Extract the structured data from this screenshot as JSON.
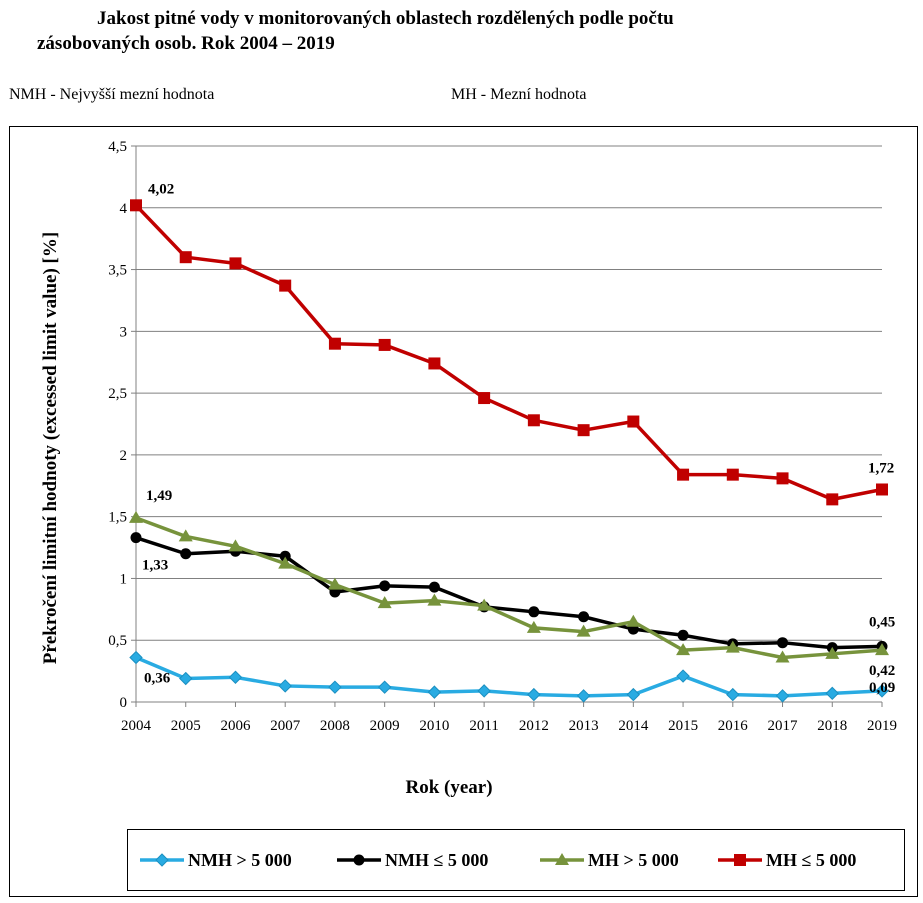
{
  "header": {
    "title_line1": "Jakost pitné vody v monitorovaných oblastech rozdělených podle počtu",
    "title_line2": "zásobovaných osob. Rok 2004 – 2019",
    "abbr_nmh": "NMH - Nejvyšší mezní hodnota",
    "abbr_mh": "MH - Mezní hodnota"
  },
  "chart_data": {
    "type": "line",
    "title": "Jakost pitné vody v monitorovaných oblastech rozdělených podle počtu zásobovaných osob. Rok 2004 – 2019",
    "xlabel": "Rok (year)",
    "ylabel": "Překročení limitní hodnoty (excessed limit value) [%]",
    "x": [
      "2004",
      "2005",
      "2006",
      "2007",
      "2008",
      "2009",
      "2010",
      "2011",
      "2012",
      "2013",
      "2014",
      "2015",
      "2016",
      "2017",
      "2018",
      "2019"
    ],
    "ylim": [
      0,
      4.5
    ],
    "yticks": [
      "0",
      "0,5",
      "1",
      "1,5",
      "2",
      "2,5",
      "3",
      "3,5",
      "4",
      "4,5"
    ],
    "ytick_values": [
      0,
      0.5,
      1,
      1.5,
      2,
      2.5,
      3,
      3.5,
      4,
      4.5
    ],
    "grid": true,
    "legend_position": "bottom",
    "series": [
      {
        "name": "NMH > 5 000",
        "color": "#29abe2",
        "marker": "diamond",
        "values": [
          0.36,
          0.19,
          0.2,
          0.13,
          0.12,
          0.12,
          0.08,
          0.09,
          0.06,
          0.05,
          0.06,
          0.21,
          0.06,
          0.05,
          0.07,
          0.09
        ]
      },
      {
        "name": "NMH ≤ 5 000",
        "color": "#000000",
        "marker": "circle",
        "values": [
          1.33,
          1.2,
          1.22,
          1.18,
          0.89,
          0.94,
          0.93,
          0.77,
          0.73,
          0.69,
          0.59,
          0.54,
          0.47,
          0.48,
          0.44,
          0.45
        ]
      },
      {
        "name": "MH > 5 000",
        "color": "#77933c",
        "marker": "triangle",
        "values": [
          1.49,
          1.34,
          1.26,
          1.12,
          0.95,
          0.8,
          0.82,
          0.78,
          0.6,
          0.57,
          0.65,
          0.42,
          0.44,
          0.36,
          0.39,
          0.42
        ]
      },
      {
        "name": "MH ≤ 5 000",
        "color": "#c00000",
        "marker": "square",
        "values": [
          4.02,
          3.6,
          3.55,
          3.37,
          2.9,
          2.89,
          2.74,
          2.46,
          2.28,
          2.2,
          2.27,
          1.84,
          1.84,
          1.81,
          1.64,
          1.72
        ]
      }
    ],
    "annotations": [
      {
        "text": "4,02",
        "series": 3,
        "index": 0
      },
      {
        "text": "1,72",
        "series": 3,
        "index": 15
      },
      {
        "text": "1,49",
        "series": 2,
        "index": 0
      },
      {
        "text": "1,33",
        "series": 1,
        "index": 0
      },
      {
        "text": "0,36",
        "series": 0,
        "index": 0
      },
      {
        "text": "0,45",
        "series": 1,
        "index": 15
      },
      {
        "text": "0,42",
        "series": 2,
        "index": 15
      },
      {
        "text": "0,09",
        "series": 0,
        "index": 15
      }
    ],
    "legend_labels": [
      "NMH > 5 000",
      "NMH  ≤  5 000",
      "MH  > 5 000",
      "MH ≤  5 000"
    ]
  }
}
